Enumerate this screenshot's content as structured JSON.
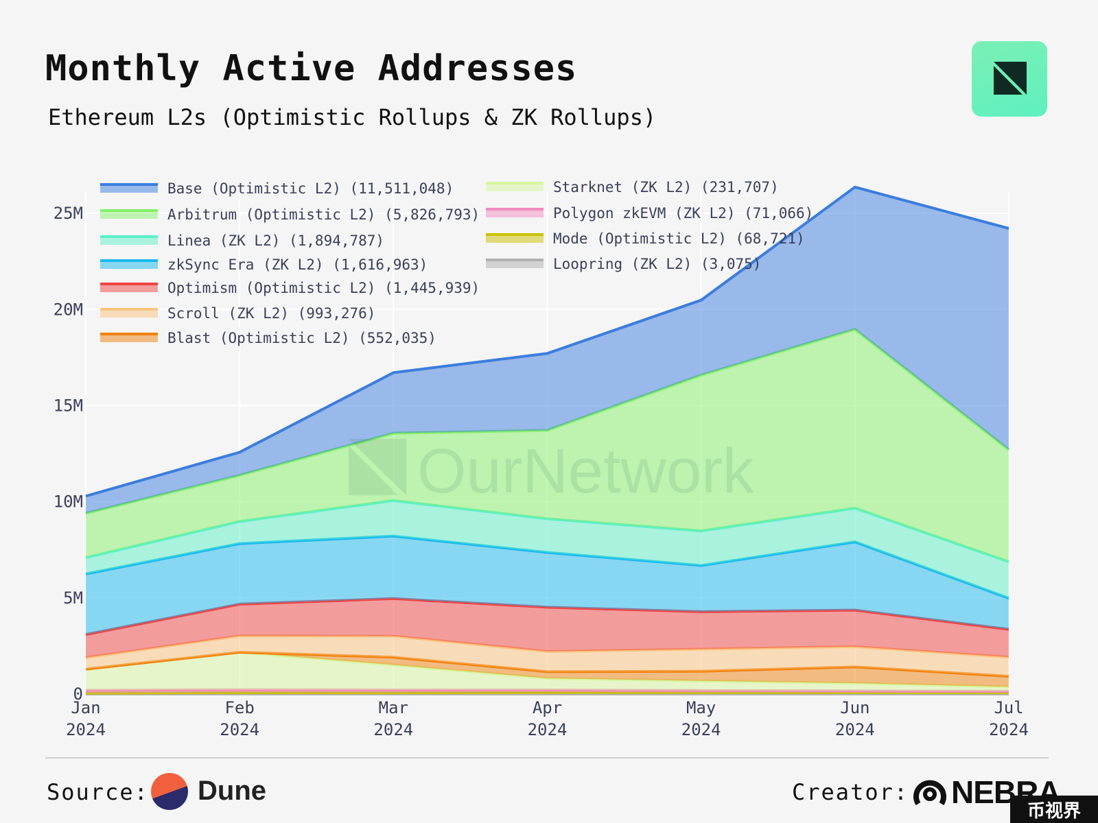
{
  "header": {
    "title": "Monthly Active Addresses",
    "subtitle": "Ethereum L2s (Optimistic Rollups & ZK Rollups)"
  },
  "watermark": "OurNetwork",
  "footer": {
    "source_label": "Source:",
    "source_name": "Dune",
    "creator_label": "Creator:",
    "creator_name": "NEBRA",
    "corner_badge": "币视界"
  },
  "chart_data": {
    "type": "area",
    "stacked": true,
    "title": "Monthly Active Addresses",
    "subtitle": "Ethereum L2s (Optimistic Rollups & ZK Rollups)",
    "x": [
      "Jan 2024",
      "Feb 2024",
      "Mar 2024",
      "Apr 2024",
      "May 2024",
      "Jun 2024",
      "Jul 2024"
    ],
    "x_labels": [
      [
        "Jan",
        "2024"
      ],
      [
        "Feb",
        "2024"
      ],
      [
        "Mar",
        "2024"
      ],
      [
        "Apr",
        "2024"
      ],
      [
        "May",
        "2024"
      ],
      [
        "Jun",
        "2024"
      ],
      [
        "Jul",
        "2024"
      ]
    ],
    "ylim": [
      0,
      27000000
    ],
    "yticks": [
      {
        "value": 0,
        "label": "0"
      },
      {
        "value": 5000000,
        "label": "5M"
      },
      {
        "value": 10000000,
        "label": "10M"
      },
      {
        "value": 15000000,
        "label": "15M"
      },
      {
        "value": 20000000,
        "label": "20M"
      },
      {
        "value": 25000000,
        "label": "25M"
      }
    ],
    "grid": true,
    "legend_position": "top-left",
    "series": [
      {
        "name": "Loopring (ZK L2) (3,075)",
        "color": "#b0b0b0",
        "values": [
          5000,
          5000,
          5000,
          5000,
          5000,
          5000,
          3075
        ]
      },
      {
        "name": "Mode (Optimistic L2) (68,721)",
        "color": "#c9c200",
        "values": [
          40000,
          70000,
          60000,
          90000,
          80000,
          70000,
          68721
        ]
      },
      {
        "name": "Polygon zkEVM (ZK L2) (71,066)",
        "color": "#f08bbf",
        "values": [
          150000,
          150000,
          150000,
          120000,
          100000,
          90000,
          71066
        ]
      },
      {
        "name": "Starknet (ZK L2) (231,707)",
        "color": "#d8f59e",
        "values": [
          1100000,
          1950000,
          1300000,
          600000,
          500000,
          400000,
          231707
        ]
      },
      {
        "name": "Blast (Optimistic L2) (552,035)",
        "color": "#f0820f",
        "values": [
          0,
          0,
          400000,
          350000,
          500000,
          850000,
          552035
        ]
      },
      {
        "name": "Scroll (ZK L2) (993,276)",
        "color": "#fbc37e",
        "values": [
          600000,
          850000,
          1100000,
          1050000,
          1150000,
          1050000,
          993276
        ]
      },
      {
        "name": "Optimism (Optimistic L2) (1,445,939)",
        "color": "#ef4444",
        "values": [
          1200000,
          1650000,
          1950000,
          2300000,
          1950000,
          1900000,
          1445939
        ]
      },
      {
        "name": "zkSync Era (ZK L2) (1,616,963)",
        "color": "#1ab8ef",
        "values": [
          3150000,
          3150000,
          3250000,
          2850000,
          2400000,
          3550000,
          1616963
        ]
      },
      {
        "name": "Linea (ZK L2) (1,894,787)",
        "color": "#5cf0c8",
        "values": [
          850000,
          1150000,
          1850000,
          1750000,
          1800000,
          1750000,
          1894787
        ]
      },
      {
        "name": "Arbitrum (Optimistic L2) (5,826,793)",
        "color": "#86f06a",
        "values": [
          2300000,
          2400000,
          3500000,
          4600000,
          8100000,
          9300000,
          5826793
        ]
      },
      {
        "name": "Base (Optimistic L2) (11,511,048)",
        "color": "#3b7ddd",
        "values": [
          900000,
          1200000,
          3150000,
          4000000,
          3900000,
          7400000,
          11511048
        ]
      }
    ],
    "legend": [
      "Base (Optimistic L2) (11,511,048)",
      "Arbitrum (Optimistic L2) (5,826,793)",
      "Linea (ZK L2) (1,894,787)",
      "zkSync Era (ZK L2) (1,616,963)",
      "Optimism (Optimistic L2) (1,445,939)",
      "Scroll (ZK L2) (993,276)",
      "Blast (Optimistic L2) (552,035)",
      "Starknet (ZK L2) (231,707)",
      "Polygon zkEVM (ZK L2) (71,066)",
      "Mode (Optimistic L2) (68,721)",
      "Loopring (ZK L2) (3,075)"
    ]
  }
}
